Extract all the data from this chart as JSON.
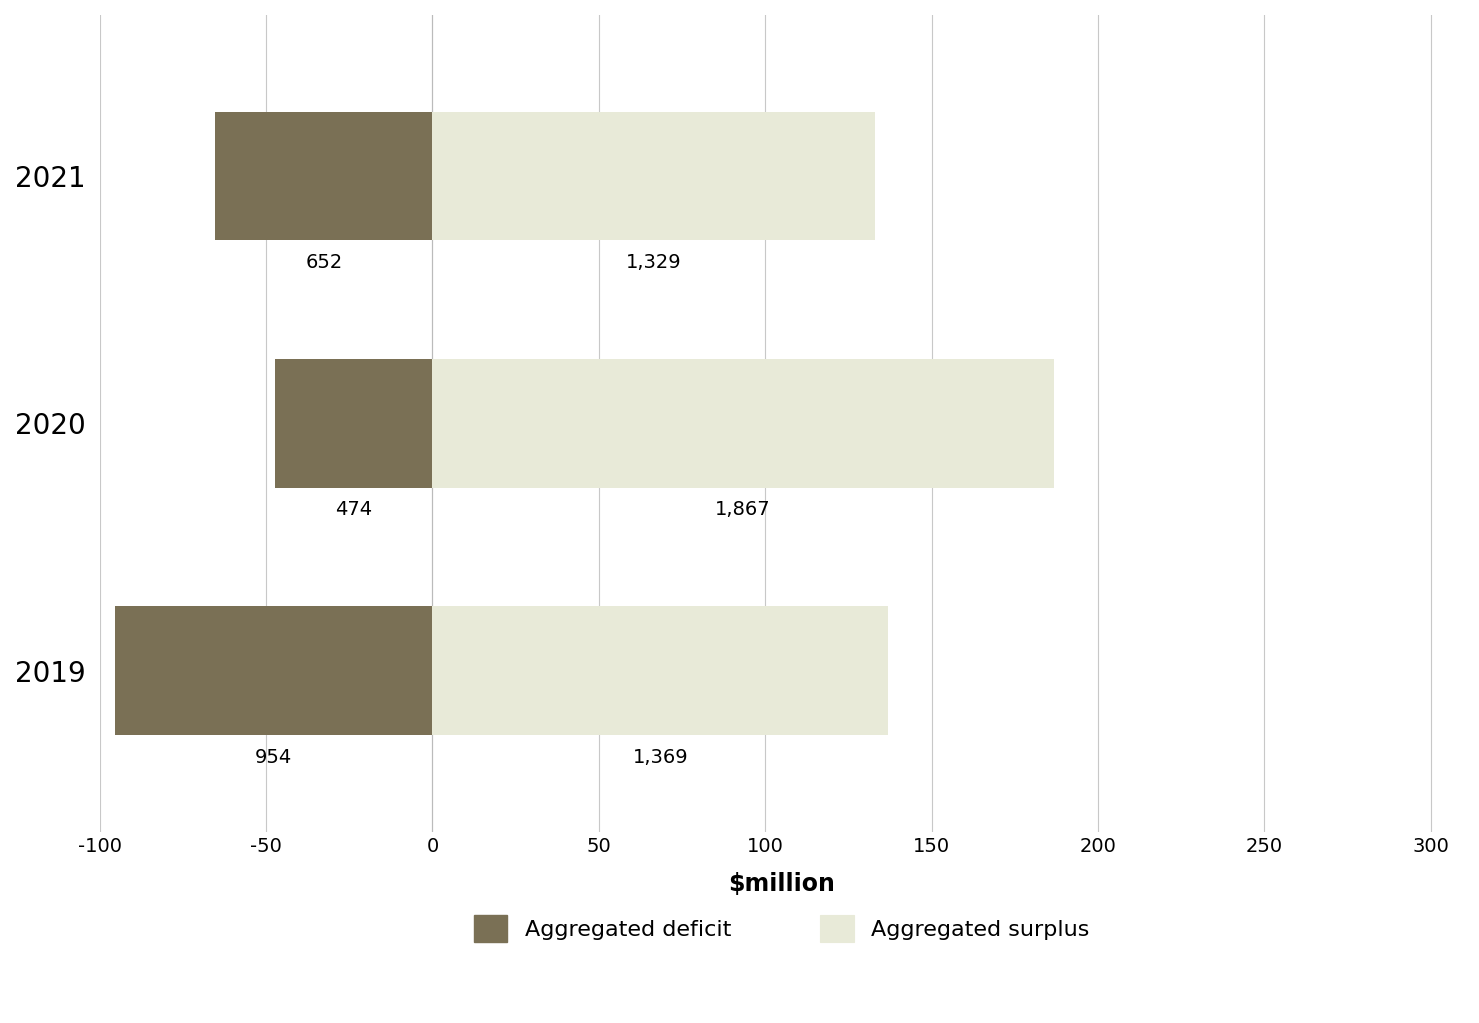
{
  "years": [
    "2021",
    "2020",
    "2019"
  ],
  "deficit_axis_values": [
    -65.2,
    -47.4,
    -95.4
  ],
  "surplus_axis_values": [
    132.9,
    186.7,
    136.9
  ],
  "deficit_labels": [
    "652",
    "474",
    "954"
  ],
  "surplus_labels": [
    "1,329",
    "1,867",
    "1,369"
  ],
  "deficit_color": "#7a7055",
  "surplus_color": "#e8ead8",
  "surplus_edge_color": "#d0d4bc",
  "xlim": [
    -100,
    310
  ],
  "xticks": [
    -100,
    -50,
    0,
    50,
    100,
    150,
    200,
    250,
    300
  ],
  "xlabel": "$million",
  "legend_deficit": "Aggregated deficit",
  "legend_surplus": "Aggregated surplus",
  "background_color": "#ffffff",
  "grid_color": "#c8c8c8",
  "bar_height": 0.52,
  "label_fontsize": 14,
  "ytick_fontsize": 20,
  "xtick_fontsize": 14,
  "xlabel_fontsize": 17,
  "legend_fontsize": 16
}
